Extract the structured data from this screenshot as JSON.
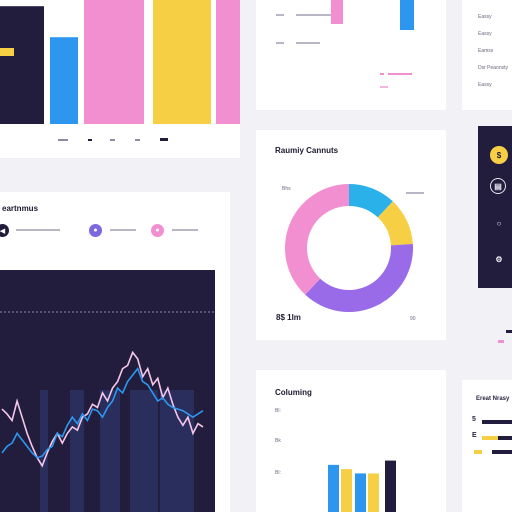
{
  "cards": {
    "ring": {
      "title": "Raumiy Cannuts",
      "label_top": "Bhs",
      "value_bottom_left": "8$ 1lm",
      "value_bottom_right": "90"
    },
    "metrics": {
      "title": "eartnmus"
    },
    "columns": {
      "title": "Columing",
      "tick_a": "Bl:",
      "tick_b": "Bk",
      "tick_c": "Bl:"
    },
    "side_list": {
      "items": [
        "Eassy",
        "Eassy",
        "Eamss",
        "Dsr Peaonsty",
        "Eassy"
      ]
    },
    "side_progress": {
      "title": "Ereat Nrasy",
      "row_a": "5",
      "row_b": "E"
    }
  },
  "colors": {
    "pink": "#f28fd0",
    "blue": "#2d97f0",
    "yellow": "#f6cf45",
    "purple": "#9a6be8",
    "dark": "#221d3c",
    "cyan": "#2ab1ea"
  },
  "icons": {
    "metrics_legend": [
      "left-arrow-icon",
      "dot-icon",
      "dot-icon"
    ],
    "side_keys": [
      "coin-icon",
      "clipboard-icon",
      "bulb-icon",
      "gear-icon"
    ]
  },
  "chart_data": [
    {
      "type": "bar",
      "categories": [
        "",
        "",
        "",
        "",
        ""
      ],
      "values": [
        95,
        70,
        100,
        100,
        100
      ],
      "colors": [
        "#221d3c",
        "#2d97f0",
        "#f28fd0",
        "#f6cf45",
        "#f28fd0"
      ],
      "ylim": [
        0,
        100
      ]
    },
    {
      "type": "pie",
      "values": [
        12,
        12,
        38,
        38
      ],
      "colors": [
        "#2ab1ea",
        "#f6cf45",
        "#9a6be8",
        "#f28fd0"
      ]
    },
    {
      "type": "line",
      "x": [
        0,
        1,
        2,
        3,
        4,
        5,
        6,
        7,
        8,
        9,
        10,
        11,
        12,
        13,
        14,
        15,
        16,
        17,
        18,
        19,
        20,
        21,
        22,
        23,
        24,
        25,
        26,
        27,
        28,
        29,
        30,
        31,
        32,
        33,
        34,
        35,
        36,
        37,
        38,
        39,
        40
      ],
      "series": [
        {
          "values": [
            45,
            42,
            38,
            50,
            40,
            30,
            22,
            15,
            10,
            18,
            25,
            30,
            24,
            30,
            34,
            32,
            40,
            42,
            48,
            46,
            55,
            50,
            58,
            62,
            70,
            72,
            80,
            76,
            65,
            70,
            60,
            64,
            52,
            58,
            48,
            40,
            35,
            40,
            30,
            36,
            34
          ],
          "color": "#f6c7ea"
        },
        {
          "values": [
            18,
            22,
            24,
            30,
            26,
            22,
            18,
            15,
            16,
            20,
            22,
            30,
            28,
            35,
            40,
            36,
            42,
            38,
            45,
            44,
            40,
            46,
            50,
            58,
            55,
            62,
            66,
            70,
            62,
            60,
            55,
            50,
            52,
            48,
            46,
            45,
            44,
            42,
            40,
            42,
            44
          ],
          "color": "#2d97f0"
        }
      ],
      "ylim": [
        0,
        100
      ]
    },
    {
      "type": "bar",
      "categories": [
        "",
        "",
        "",
        "",
        ""
      ],
      "values": [
        55,
        50,
        45,
        45,
        60
      ],
      "colors": [
        "#2d97f0",
        "#f6cf45",
        "#2d97f0",
        "#f6cf45",
        "#221d3c"
      ],
      "ylim": [
        0,
        70
      ]
    }
  ]
}
